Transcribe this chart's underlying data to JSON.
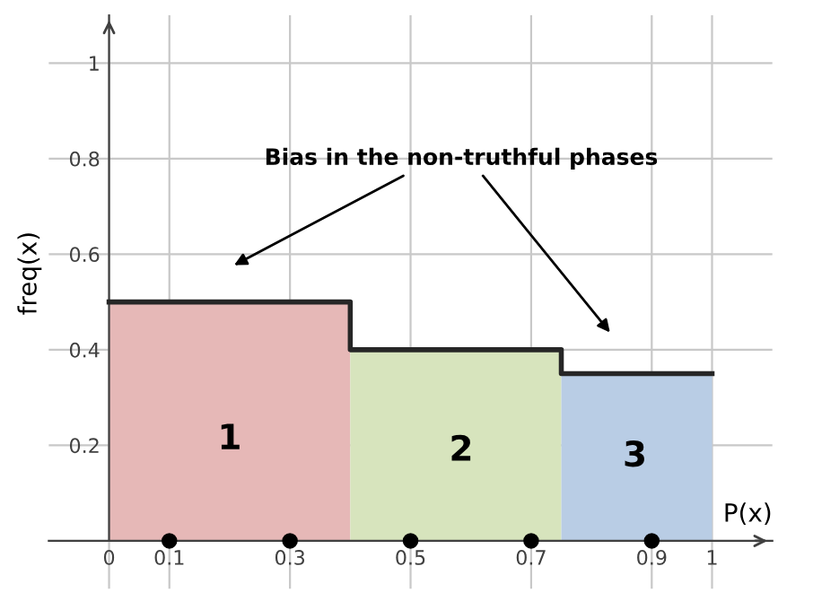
{
  "chart_data": {
    "type": "histogram",
    "xlabel": "P(x)",
    "ylabel": "freq(x)",
    "bins": [
      0,
      0.4,
      0.75,
      1
    ],
    "values": [
      0.5,
      0.4,
      0.35
    ],
    "colors": [
      "#e6b8b7",
      "#d7e4bd",
      "#b9cde5"
    ],
    "series": [
      {
        "type": "step",
        "color": "#262626",
        "x": [
          0,
          0.4,
          0.75,
          1
        ],
        "values": [
          0.5,
          0.4,
          0.35,
          0.35
        ]
      },
      {
        "type": "scatter",
        "marker": "circle",
        "color": "#000000",
        "x": [
          0.1,
          0.3,
          0.5,
          0.7,
          0.9
        ],
        "values": [
          0,
          0,
          0,
          0,
          0
        ]
      }
    ],
    "xlim": [
      -0.1,
      1.1
    ],
    "ylim": [
      -0.1,
      1.1
    ],
    "xticks": [
      0,
      0.1,
      0.3,
      0.5,
      0.7,
      0.9,
      1
    ],
    "yticks": [
      0.2,
      0.4,
      0.6,
      0.8,
      1
    ],
    "grid": true,
    "annotations": [
      "1",
      "2",
      "3",
      "Bias in the non-truthful phases"
    ]
  }
}
